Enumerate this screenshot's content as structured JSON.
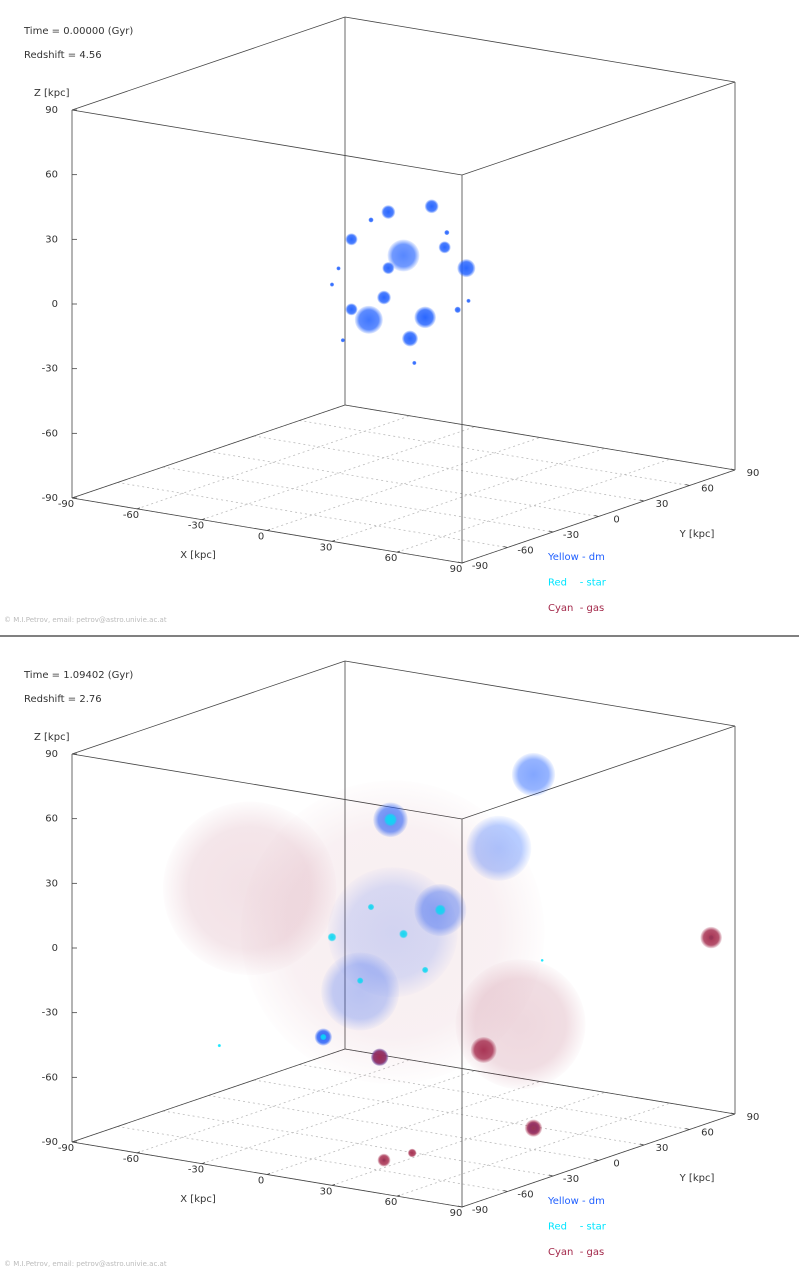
{
  "chart_data": [
    {
      "type": "scatter3d",
      "annotations": [
        "Time = 0.00000 (Gyr)",
        "Redshift = 4.56"
      ],
      "xlabel": "X [kpc]",
      "ylabel": "Y [kpc]",
      "zlabel": "Z [kpc]",
      "xlim": [
        -90,
        90
      ],
      "ylim": [
        -90,
        90
      ],
      "zlim": [
        -90,
        90
      ],
      "xticks": [
        -90,
        -60,
        -30,
        0,
        30,
        60,
        90
      ],
      "yticks": [
        -90,
        -60,
        -30,
        0,
        30,
        60,
        90
      ],
      "zticks": [
        -90,
        -60,
        -30,
        0,
        30,
        60,
        90
      ],
      "grid": true,
      "series": [
        {
          "name": "Yellow - dm",
          "color": "#1f5fff",
          "x": [
            0,
            -16,
            10,
            29,
            13,
            -7,
            -24,
            3,
            -24,
            19,
            -9,
            -7,
            -30,
            -28,
            5,
            25,
            20,
            -15,
            30,
            -33
          ],
          "y": [
            0,
            0,
            0,
            0,
            0,
            0,
            0,
            0,
            0,
            0,
            0,
            0,
            0,
            0,
            0,
            0,
            0,
            0,
            0,
            0
          ],
          "z": [
            16,
            -16.5,
            -11,
            15,
            41,
            35,
            19.5,
            -22,
            -13,
            23,
            -5,
            9,
            5,
            -28,
            -33,
            -5,
            30,
            30,
            0,
            -3
          ],
          "radius": [
            7.4,
            6.5,
            5,
            4.2,
            3.2,
            3.2,
            2.8,
            3.7,
            2.8,
            2.8,
            3.2,
            2.8,
            1,
            1,
            1,
            1.5,
            1.2,
            1.2,
            1,
            1
          ]
        },
        {
          "name": "Red    - star",
          "color": "#00e5ff",
          "x": [],
          "y": [],
          "z": [],
          "radius": []
        },
        {
          "name": "Cyan  - gas",
          "color": "#a3284a",
          "x": [],
          "y": [],
          "z": [],
          "radius": []
        }
      ],
      "footer": "© M.I.Petrov, email: petrov@astro.univie.ac.at"
    },
    {
      "type": "scatter3d",
      "annotations": [
        "Time = 1.09402 (Gyr)",
        "Redshift = 2.76"
      ],
      "xlabel": "X [kpc]",
      "ylabel": "Y [kpc]",
      "zlabel": "Z [kpc]",
      "xlim": [
        -90,
        90
      ],
      "ylim": [
        -90,
        90
      ],
      "zlim": [
        -90,
        90
      ],
      "xticks": [
        -90,
        -60,
        -30,
        0,
        30,
        60,
        90
      ],
      "yticks": [
        -90,
        -60,
        -30,
        0,
        30,
        60,
        90
      ],
      "zticks": [
        -90,
        -60,
        -30,
        0,
        30,
        60,
        90
      ],
      "grid": true,
      "series": [
        {
          "name": "Yellow - dm",
          "color": "#1f5fff",
          "x": [
            -5,
            -6,
            60,
            -37,
            17,
            -20,
            60,
            -11,
            30
          ],
          "y": [
            0,
            0,
            0,
            0,
            0,
            0,
            0,
            0,
            20
          ],
          "z": [
            0,
            52,
            84,
            -54,
            14,
            -30,
            -80,
            -59,
            40
          ],
          "radius": [
            30,
            8,
            10,
            4,
            12,
            18,
            3,
            4,
            15
          ]
        },
        {
          "name": "Red    - star",
          "color": "#00e5ff",
          "x": [
            79,
            60,
            33,
            -37,
            -6,
            -33,
            17,
            0,
            10,
            -15,
            -85,
            64,
            -20
          ],
          "y": [
            90,
            0,
            -60,
            0,
            0,
            0,
            0,
            0,
            0,
            0,
            0,
            0,
            0
          ],
          "z": [
            -10,
            -80,
            -85,
            -54,
            52,
            -7,
            14,
            0,
            -15,
            10,
            -66,
            -1.5,
            -25
          ],
          "radius": [
            1.2,
            1.2,
            0.8,
            1.5,
            3,
            2,
            2.5,
            2,
            1.5,
            1.5,
            0.8,
            0.7,
            1.5
          ]
        },
        {
          "name": "Cyan  - gas",
          "color": "#a3284a",
          "x": [
            -5,
            40,
            -50,
            79,
            60,
            33,
            46,
            37,
            -11
          ],
          "y": [
            0,
            20,
            -30,
            90,
            0,
            -60,
            -60,
            0,
            0
          ],
          "z": [
            0,
            -40,
            20,
            -10,
            -80,
            -85,
            -79.5,
            -47.6,
            -59
          ],
          "radius": [
            70,
            30,
            40,
            5,
            4,
            3,
            2,
            6,
            4
          ]
        }
      ],
      "footer": "© M.I.Petrov, email: petrov@astro.univie.ac.at"
    }
  ]
}
